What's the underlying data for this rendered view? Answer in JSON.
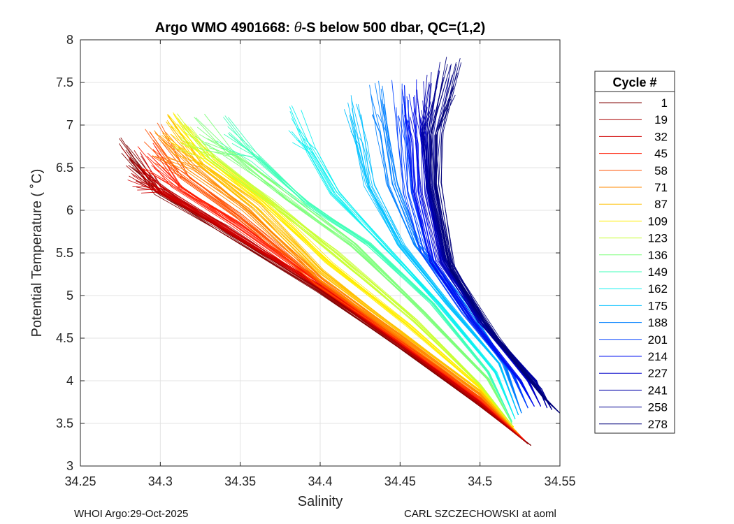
{
  "chart_data": {
    "type": "line",
    "title_prefix": "Argo WMO 4901668: ",
    "title_symbol": "θ",
    "title_suffix": "-S below 500 dbar,  QC=(1,2)",
    "xlabel": "Salinity",
    "ylabel": "Potential Temperature ( ˚C)",
    "xlim": [
      34.25,
      34.55
    ],
    "ylim": [
      3,
      8
    ],
    "xticks": [
      34.25,
      34.3,
      34.35,
      34.4,
      34.45,
      34.5,
      34.55
    ],
    "xtick_labels": [
      "34.25",
      "34.3",
      "34.35",
      "34.4",
      "34.45",
      "34.5",
      "34.55"
    ],
    "yticks": [
      3,
      3.5,
      4,
      4.5,
      5,
      5.5,
      6,
      6.5,
      7,
      7.5,
      8
    ],
    "ytick_labels": [
      "3",
      "3.5",
      "4",
      "4.5",
      "5",
      "5.5",
      "6",
      "6.5",
      "7",
      "7.5",
      "8"
    ],
    "grid": true,
    "legend_title": "Cycle #",
    "legend_position": "right-outside",
    "colormap": "jet (red = early cycles, dark blue = late cycles)",
    "legend": [
      {
        "label": "1",
        "color": "#800000"
      },
      {
        "label": "19",
        "color": "#a80000"
      },
      {
        "label": "32",
        "color": "#d00000"
      },
      {
        "label": "45",
        "color": "#ff1a00"
      },
      {
        "label": "58",
        "color": "#ff5000"
      },
      {
        "label": "71",
        "color": "#ff8a00"
      },
      {
        "label": "87",
        "color": "#ffc000"
      },
      {
        "label": "109",
        "color": "#ffee00"
      },
      {
        "label": "123",
        "color": "#c8ff30"
      },
      {
        "label": "136",
        "color": "#7dff7a"
      },
      {
        "label": "149",
        "color": "#40ffb8"
      },
      {
        "label": "162",
        "color": "#10f0f0"
      },
      {
        "label": "175",
        "color": "#00c0ff"
      },
      {
        "label": "188",
        "color": "#0080ff"
      },
      {
        "label": "201",
        "color": "#0040ff"
      },
      {
        "label": "214",
        "color": "#0010f0"
      },
      {
        "label": "227",
        "color": "#0000c8"
      },
      {
        "label": "241",
        "color": "#0000a8"
      },
      {
        "label": "258",
        "color": "#000090"
      },
      {
        "label": "278",
        "color": "#00007a"
      }
    ],
    "series": [
      {
        "name": "1",
        "S": [
          34.278,
          34.3,
          34.34,
          34.4,
          34.45,
          34.5,
          34.532
        ],
        "T": [
          6.7,
          6.2,
          5.75,
          5.05,
          4.4,
          3.7,
          3.24
        ],
        "spread": 0.6,
        "slope": 0
      },
      {
        "name": "19",
        "S": [
          34.282,
          34.3,
          34.34,
          34.4,
          34.45,
          34.5,
          34.53
        ],
        "T": [
          6.5,
          6.22,
          5.78,
          5.07,
          4.42,
          3.72,
          3.26
        ],
        "spread": 0.6,
        "slope": 0
      },
      {
        "name": "32",
        "S": [
          34.285,
          34.3,
          34.34,
          34.4,
          34.45,
          34.5,
          34.528
        ],
        "T": [
          6.45,
          6.25,
          5.8,
          5.1,
          4.44,
          3.75,
          3.3
        ],
        "spread": 0.6,
        "slope": 0
      },
      {
        "name": "45",
        "S": [
          34.29,
          34.31,
          34.345,
          34.4,
          34.45,
          34.5,
          34.527
        ],
        "T": [
          6.6,
          6.25,
          5.85,
          5.12,
          4.46,
          3.78,
          3.32
        ],
        "spread": 0.6,
        "slope": 0
      },
      {
        "name": "58",
        "S": [
          34.295,
          34.315,
          34.35,
          34.4,
          34.45,
          34.5,
          34.525
        ],
        "T": [
          6.8,
          6.4,
          5.92,
          5.15,
          4.48,
          3.8,
          3.36
        ],
        "spread": 0.6,
        "slope": 0
      },
      {
        "name": "71",
        "S": [
          34.3,
          34.32,
          34.355,
          34.4,
          34.45,
          34.5,
          34.524
        ],
        "T": [
          6.85,
          6.5,
          6.0,
          5.2,
          4.52,
          3.84,
          3.38
        ],
        "spread": 0.6,
        "slope": 0
      },
      {
        "name": "87",
        "S": [
          34.305,
          34.325,
          34.36,
          34.4,
          34.45,
          34.5,
          34.522
        ],
        "T": [
          6.9,
          6.55,
          6.05,
          5.3,
          4.58,
          3.88,
          3.42
        ],
        "spread": 0.6,
        "slope": 0
      },
      {
        "name": "109",
        "S": [
          34.31,
          34.33,
          34.365,
          34.405,
          34.455,
          34.5,
          34.521
        ],
        "T": [
          6.9,
          6.6,
          6.1,
          5.4,
          4.65,
          3.92,
          3.46
        ],
        "spread": 0.6,
        "slope": 0
      },
      {
        "name": "123",
        "S": [
          34.315,
          34.335,
          34.37,
          34.41,
          34.46,
          34.5,
          34.52
        ],
        "T": [
          6.9,
          6.6,
          6.1,
          5.5,
          4.7,
          3.96,
          3.48
        ],
        "spread": 0.6,
        "slope": 0
      },
      {
        "name": "136",
        "S": [
          34.325,
          34.345,
          34.38,
          34.42,
          34.465,
          34.505,
          34.52
        ],
        "T": [
          6.95,
          6.65,
          6.15,
          5.6,
          4.8,
          4.02,
          3.5
        ],
        "spread": 0.6,
        "slope": 0
      },
      {
        "name": "149",
        "S": [
          34.34,
          34.36,
          34.39,
          34.43,
          34.47,
          34.505,
          34.52
        ],
        "T": [
          6.9,
          6.6,
          6.1,
          5.6,
          4.9,
          4.1,
          3.52
        ],
        "spread": 0.6,
        "slope": 0
      },
      {
        "name": "162",
        "S": [
          34.385,
          34.395,
          34.41,
          34.44,
          34.475,
          34.51,
          34.522
        ],
        "T": [
          7.0,
          6.7,
          6.2,
          5.6,
          4.9,
          4.1,
          3.55
        ],
        "spread": 0.6,
        "slope": 0
      },
      {
        "name": "175",
        "S": [
          34.42,
          34.425,
          34.43,
          34.45,
          34.48,
          34.512,
          34.524
        ],
        "T": [
          7.1,
          6.8,
          6.3,
          5.6,
          4.9,
          4.2,
          3.6
        ],
        "spread": 0.6,
        "slope": 0
      },
      {
        "name": "188",
        "S": [
          34.435,
          34.44,
          34.445,
          34.46,
          34.49,
          34.515,
          34.526
        ],
        "T": [
          7.3,
          6.9,
          6.3,
          5.6,
          4.9,
          4.2,
          3.62
        ],
        "spread": 0.6,
        "slope": 0
      },
      {
        "name": "201",
        "S": [
          34.45,
          34.452,
          34.455,
          34.465,
          34.49,
          34.52,
          34.53
        ],
        "T": [
          7.3,
          6.8,
          6.2,
          5.5,
          4.8,
          4.1,
          3.68
        ],
        "spread": 0.6,
        "slope": 0
      },
      {
        "name": "214",
        "S": [
          34.455,
          34.458,
          34.46,
          34.47,
          34.495,
          34.525,
          34.534
        ],
        "T": [
          7.3,
          6.8,
          6.2,
          5.4,
          4.7,
          4.0,
          3.7
        ],
        "spread": 0.6,
        "slope": 0
      },
      {
        "name": "227",
        "S": [
          34.46,
          34.463,
          34.465,
          34.475,
          34.5,
          34.53,
          34.538
        ],
        "T": [
          7.3,
          6.8,
          6.2,
          5.4,
          4.7,
          4.0,
          3.7
        ],
        "spread": 0.6,
        "slope": 0
      },
      {
        "name": "241",
        "S": [
          34.47,
          34.466,
          34.468,
          34.478,
          34.5,
          34.535,
          34.542
        ],
        "T": [
          7.4,
          6.9,
          6.3,
          5.4,
          4.7,
          4.0,
          3.68
        ],
        "spread": 0.6,
        "slope": 0
      },
      {
        "name": "258",
        "S": [
          34.478,
          34.47,
          34.47,
          34.48,
          34.505,
          34.538,
          34.545
        ],
        "T": [
          7.5,
          6.9,
          6.3,
          5.4,
          4.6,
          3.9,
          3.66
        ],
        "spread": 0.6,
        "slope": 0
      },
      {
        "name": "278",
        "S": [
          34.483,
          34.472,
          34.472,
          34.482,
          34.51,
          34.54,
          34.55
        ],
        "T": [
          7.55,
          6.9,
          6.3,
          5.3,
          4.5,
          3.8,
          3.62
        ],
        "spread": 0.6,
        "slope": 0
      }
    ]
  },
  "footer": {
    "left": "WHOI Argo:29-Oct-2025",
    "right": "CARL SZCZECHOWSKI at aoml"
  }
}
